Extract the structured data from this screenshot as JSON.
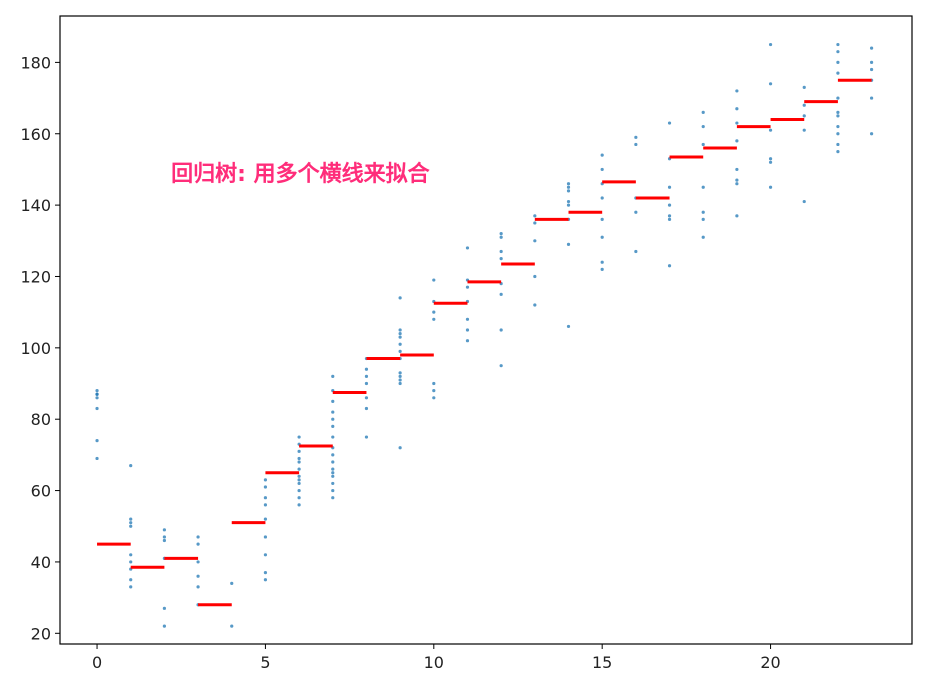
{
  "chart_data": {
    "type": "scatter",
    "title": "",
    "xlabel": "",
    "ylabel": "",
    "xlim": [
      -1.1,
      24.2
    ],
    "ylim": [
      17,
      193
    ],
    "grid": false,
    "legend": "none",
    "x_ticks": [
      0,
      5,
      10,
      15,
      20
    ],
    "y_ticks": [
      20,
      40,
      60,
      80,
      100,
      120,
      140,
      160,
      180
    ],
    "annotations": [
      {
        "text": "回归树: 用多个横线来拟合",
        "x": 2.2,
        "y": 149
      }
    ],
    "colors": {
      "points": "#1f77b4",
      "steps": "#ff0000",
      "annotation": "#ff2d7a",
      "axes": "#000000"
    },
    "series": [
      {
        "type": "scatter",
        "x": [
          0,
          0,
          0,
          0,
          0,
          0,
          0,
          1,
          1,
          1,
          1,
          1,
          1,
          1,
          1,
          1,
          2,
          2,
          2,
          2,
          2,
          2,
          3,
          3,
          3,
          3,
          3,
          3,
          4,
          4,
          5,
          5,
          5,
          5,
          5,
          5,
          5,
          5,
          5,
          6,
          6,
          6,
          6,
          6,
          6,
          6,
          6,
          6,
          6,
          6,
          6,
          7,
          7,
          7,
          7,
          7,
          7,
          7,
          7,
          7,
          7,
          7,
          7,
          7,
          7,
          7,
          7,
          8,
          8,
          8,
          8,
          8,
          8,
          8,
          9,
          9,
          9,
          9,
          9,
          9,
          9,
          9,
          9,
          9,
          9,
          9,
          10,
          10,
          10,
          10,
          10,
          10,
          10,
          11,
          11,
          11,
          11,
          11,
          11,
          11,
          12,
          12,
          12,
          12,
          12,
          12,
          12,
          12,
          13,
          13,
          13,
          13,
          13,
          14,
          14,
          14,
          14,
          14,
          14,
          14,
          14,
          15,
          15,
          15,
          15,
          15,
          15,
          15,
          15,
          16,
          16,
          16,
          16,
          16,
          17,
          17,
          17,
          17,
          17,
          17,
          17,
          18,
          18,
          18,
          18,
          18,
          18,
          18,
          19,
          19,
          19,
          19,
          19,
          19,
          19,
          19,
          20,
          20,
          20,
          20,
          20,
          20,
          21,
          21,
          21,
          21,
          21,
          22,
          22,
          22,
          22,
          22,
          22,
          22,
          22,
          22,
          22,
          22,
          23,
          23,
          23,
          23,
          23,
          23
        ],
        "y": [
          88,
          87,
          86,
          83,
          74,
          69,
          87,
          67,
          52,
          51,
          50,
          42,
          40,
          38,
          35,
          33,
          49,
          47,
          46,
          41,
          27,
          22,
          47,
          45,
          40,
          36,
          33,
          28,
          34,
          22,
          63,
          61,
          58,
          56,
          52,
          47,
          42,
          37,
          35,
          75,
          73,
          71,
          69,
          68,
          66,
          64,
          63,
          62,
          60,
          58,
          56,
          92,
          88,
          85,
          82,
          80,
          78,
          75,
          72,
          70,
          68,
          66,
          65,
          64,
          62,
          60,
          58,
          97,
          94,
          92,
          90,
          86,
          83,
          75,
          114,
          105,
          104,
          103,
          101,
          99,
          97,
          93,
          92,
          91,
          90,
          72,
          119,
          113,
          110,
          108,
          90,
          88,
          86,
          128,
          119,
          117,
          113,
          108,
          105,
          102,
          132,
          131,
          127,
          125,
          118,
          115,
          105,
          95,
          137,
          135,
          130,
          120,
          112,
          146,
          145,
          144,
          141,
          140,
          136,
          129,
          106,
          154,
          150,
          146,
          142,
          136,
          131,
          124,
          122,
          159,
          157,
          142,
          138,
          127,
          163,
          153,
          145,
          140,
          137,
          136,
          123,
          166,
          162,
          157,
          145,
          138,
          136,
          131,
          172,
          167,
          163,
          158,
          150,
          147,
          146,
          137,
          185,
          174,
          161,
          153,
          152,
          145,
          173,
          168,
          165,
          161,
          141,
          185,
          183,
          180,
          177,
          170,
          166,
          165,
          162,
          160,
          157,
          155,
          184,
          180,
          178,
          175,
          170,
          160
        ]
      },
      {
        "type": "step",
        "segments": [
          {
            "x0": 0,
            "x1": 1,
            "y": 45
          },
          {
            "x0": 1,
            "x1": 2,
            "y": 38.5
          },
          {
            "x0": 2,
            "x1": 3,
            "y": 41
          },
          {
            "x0": 3,
            "x1": 4,
            "y": 28
          },
          {
            "x0": 4,
            "x1": 5,
            "y": 51
          },
          {
            "x0": 5,
            "x1": 6,
            "y": 65
          },
          {
            "x0": 6,
            "x1": 7,
            "y": 72.5
          },
          {
            "x0": 7,
            "x1": 8,
            "y": 87.5
          },
          {
            "x0": 8,
            "x1": 9,
            "y": 97
          },
          {
            "x0": 9,
            "x1": 10,
            "y": 98
          },
          {
            "x0": 10,
            "x1": 11,
            "y": 112.5
          },
          {
            "x0": 11,
            "x1": 12,
            "y": 118.5
          },
          {
            "x0": 12,
            "x1": 13,
            "y": 123.5
          },
          {
            "x0": 13,
            "x1": 14,
            "y": 136
          },
          {
            "x0": 14,
            "x1": 15,
            "y": 138
          },
          {
            "x0": 15,
            "x1": 16,
            "y": 146.5
          },
          {
            "x0": 16,
            "x1": 17,
            "y": 142
          },
          {
            "x0": 17,
            "x1": 18,
            "y": 153.5
          },
          {
            "x0": 18,
            "x1": 19,
            "y": 156
          },
          {
            "x0": 19,
            "x1": 20,
            "y": 162
          },
          {
            "x0": 20,
            "x1": 21,
            "y": 164
          },
          {
            "x0": 21,
            "x1": 22,
            "y": 169
          },
          {
            "x0": 22,
            "x1": 23,
            "y": 175
          }
        ]
      }
    ]
  }
}
